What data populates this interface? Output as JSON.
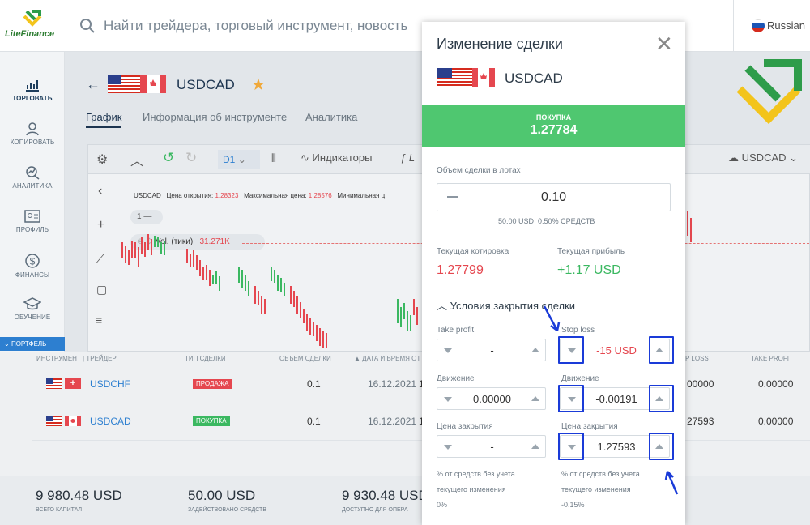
{
  "app": {
    "brand": "LiteFinance"
  },
  "topbar": {
    "search_placeholder": "Найти трейдера, торговый инструмент, новость",
    "language": "Russian"
  },
  "sidebar": {
    "items": [
      {
        "label": "ТОРГОВАТЬ",
        "icon": "chart-bars-icon"
      },
      {
        "label": "КОПИРОВАТЬ",
        "icon": "user-copy-icon"
      },
      {
        "label": "АНАЛИТИКА",
        "icon": "analytics-icon"
      },
      {
        "label": "ПРОФИЛЬ",
        "icon": "id-card-icon"
      },
      {
        "label": "ФИНАНСЫ",
        "icon": "dollar-icon"
      },
      {
        "label": "ОБУЧЕНИЕ",
        "icon": "graduation-cap-icon"
      }
    ],
    "portfolio": "ПОРТФЕЛЬ"
  },
  "page": {
    "symbol": "USDCAD",
    "tabs": [
      "График",
      "Информация об инструменте",
      "Аналитика"
    ]
  },
  "chart": {
    "toolbar": {
      "timeframe": "D1",
      "indicators": "Индикаторы",
      "symbol": "USDCAD"
    },
    "info": {
      "symbol": "USDCAD",
      "open_label": "Цена открытия:",
      "open_value": "1.28323",
      "max_label": "Максимальная цена:",
      "max_value": "1.28576",
      "min_label": "Минимальная ц"
    },
    "layer": "1",
    "volume_label": "Vol. (тики)",
    "volume_value": "31.271K"
  },
  "table": {
    "headers": [
      "ИНСТРУМЕНТ | ТРЕЙДЕР",
      "ТИП СДЕЛКИ",
      "ОБЪЕМ СДЕЛКИ",
      "ДАТА И ВРЕМЯ ОТ",
      "P LOSS",
      "TAKE PROFIT"
    ],
    "rows": [
      {
        "symbol": "USDCHF",
        "type": "ПРОДАЖА",
        "type_color": "#e5474f",
        "volume": "0.1",
        "date": "16.12.2021",
        "date_tail": "1",
        "stop_loss": "00000",
        "take_profit": "0.00000"
      },
      {
        "symbol": "USDCAD",
        "type": "ПОКУПКА",
        "type_color": "#3bb861",
        "volume": "0.1",
        "date": "16.12.2021",
        "date_tail": "1",
        "stop_loss": "27593",
        "take_profit": "0.00000"
      }
    ]
  },
  "footer": {
    "stats": [
      {
        "value": "9 980.48 USD",
        "label": "ВСЕГО КАПИТАЛ"
      },
      {
        "value": "50.00 USD",
        "label": "ЗАДЕЙСТВОВАНО СРЕДСТВ"
      },
      {
        "value": "9 930.48 USD",
        "label": "ДОСТУПНО ДЛЯ ОПЕРА"
      }
    ]
  },
  "modal": {
    "title": "Изменение сделки",
    "symbol": "USDCAD",
    "direction_label": "ПОКУПКА",
    "direction_price": "1.27784",
    "volume_label": "Объем сделки в лотах",
    "volume_value": "0.10",
    "volume_usd": "50.00 USD",
    "volume_pct": "0.50% СРЕДСТВ",
    "quote_label": "Текущая котировка",
    "quote_value": "1.27799",
    "profit_label": "Текущая прибыль",
    "profit_value": "+1.17 USD",
    "close_conditions": "Условия закрытия сделки",
    "take_profit": {
      "title": "Take profit",
      "value": "-",
      "movement_label": "Движение",
      "movement_value": "0.00000",
      "close_label": "Цена закрытия",
      "close_value": "-",
      "pct_label_1": "% от средств без учета",
      "pct_label_2": "текущего изменения",
      "pct_value": "0%"
    },
    "stop_loss": {
      "title": "Stop loss",
      "value": "-15 USD",
      "movement_label": "Движение",
      "movement_value": "-0.00191",
      "close_label": "Цена закрытия",
      "close_value": "1.27593",
      "pct_label_1": "% от средств без учета",
      "pct_label_2": "текущего изменения",
      "pct_value": "-0.15%"
    }
  },
  "colors": {
    "buy": "#4fc770",
    "sell": "#e5474f",
    "accent": "#2d7fd0",
    "highlight": "#1a3bd8"
  }
}
